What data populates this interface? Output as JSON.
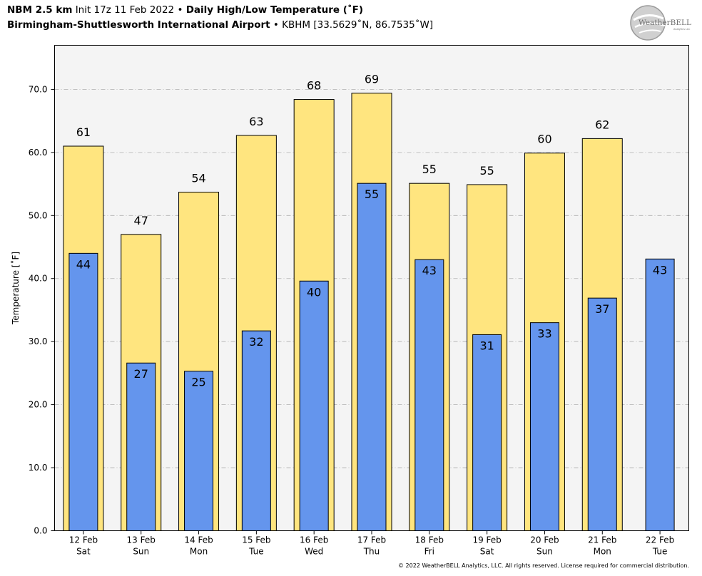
{
  "header": {
    "model": "NBM 2.5 km",
    "init": "Init 17z 11 Feb 2022",
    "sep": "•",
    "product": "Daily High/Low Temperature (˚F)",
    "station_name": "Birmingham-Shuttlesworth International Airport",
    "station_info": "KBHM [33.5629˚N, 86.7535˚W]"
  },
  "logo": {
    "text_main": "WeatherBELL",
    "text_sub": "Analytics LLC"
  },
  "copyright": "© 2022 WeatherBELL Analytics, LLC. All rights reserved. License required for commercial distribution.",
  "colors": {
    "high_fill": "#ffe57f",
    "low_fill": "#6495ed",
    "plot_bg": "#f4f4f4",
    "grid": "#b0b0b0"
  },
  "chart_data": {
    "type": "bar",
    "title": "Daily High/Low Temperature (˚F)",
    "ylabel": "Temperature [˚F]",
    "ylim": [
      0,
      77
    ],
    "yticks": [
      "0.0",
      "10.0",
      "20.0",
      "30.0",
      "40.0",
      "50.0",
      "60.0",
      "70.0"
    ],
    "ytick_values": [
      0,
      10,
      20,
      30,
      40,
      50,
      60,
      70
    ],
    "grid": true,
    "categories": [
      [
        "12 Feb",
        "Sat"
      ],
      [
        "13 Feb",
        "Sun"
      ],
      [
        "14 Feb",
        "Mon"
      ],
      [
        "15 Feb",
        "Tue"
      ],
      [
        "16 Feb",
        "Wed"
      ],
      [
        "17 Feb",
        "Thu"
      ],
      [
        "18 Feb",
        "Fri"
      ],
      [
        "19 Feb",
        "Sat"
      ],
      [
        "20 Feb",
        "Sun"
      ],
      [
        "21 Feb",
        "Mon"
      ],
      [
        "22 Feb",
        "Tue"
      ]
    ],
    "series": [
      {
        "values": [
          61,
          47,
          53.7,
          62.7,
          68.4,
          69.4,
          55.1,
          54.9,
          59.9,
          62.2,
          null
        ],
        "labels": [
          "61",
          "47",
          "54",
          "63",
          "68",
          "69",
          "55",
          "55",
          "60",
          "62",
          ""
        ]
      },
      {
        "values": [
          44,
          26.6,
          25.3,
          31.7,
          39.6,
          55.1,
          43,
          31.1,
          33,
          36.9,
          43.1
        ],
        "labels": [
          "44",
          "27",
          "25",
          "32",
          "40",
          "55",
          "43",
          "31",
          "33",
          "37",
          "43"
        ]
      }
    ]
  }
}
